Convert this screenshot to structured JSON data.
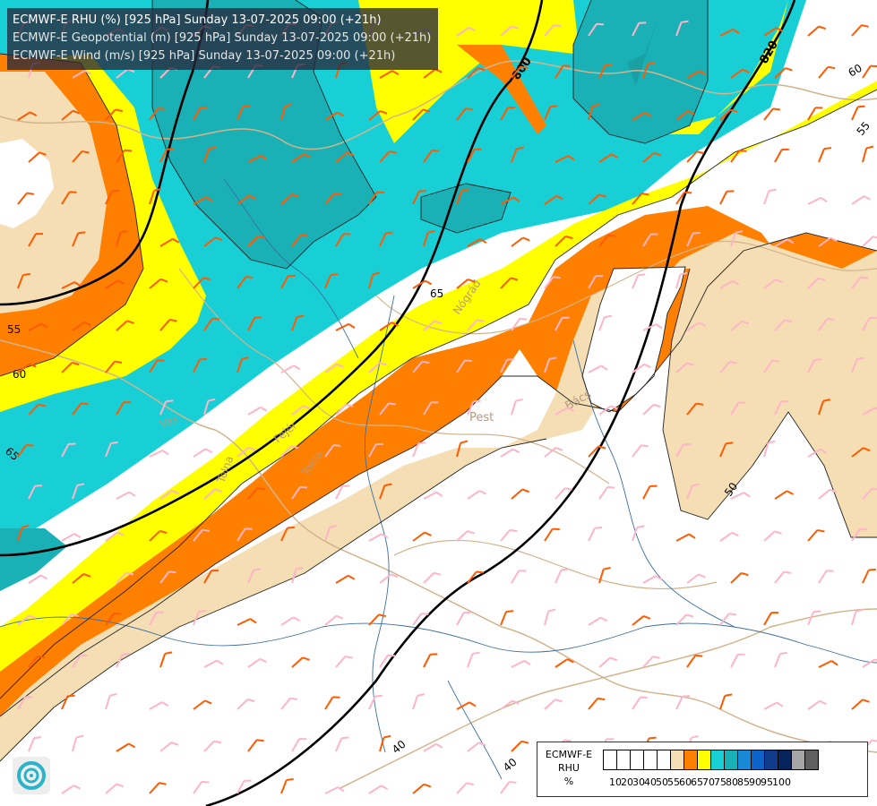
{
  "header": {
    "rhu_line": "ECMWF-E RHU (%) [925 hPa] Sunday 13-07-2025 09:00 (+21h)",
    "geopotential_line": "ECMWF-E Geopotential (m) [925 hPa] Sunday 13-07-2025 09:00 (+21h)",
    "wind_line": "ECMWF-E Wind (m/s) [925 hPa] Sunday 13-07-2025 09:00 (+21h)"
  },
  "contour_labels": {
    "geopotential": [
      "800",
      "820"
    ],
    "rhu": [
      "55",
      "60",
      "65",
      "65",
      "60",
      "55",
      "50",
      "40",
      "40"
    ]
  },
  "place_labels": [
    "Pest",
    "Bács",
    "Tolna",
    "Tolna",
    "Fejér",
    "Nógrád",
    "Vas"
  ],
  "legend": {
    "title_line1": "ECMWF-E",
    "title_line2": "RHU",
    "title_line3": "%",
    "ticks": [
      "10",
      "20",
      "30",
      "40",
      "50",
      "55",
      "60",
      "65",
      "70",
      "75",
      "80",
      "85",
      "90",
      "95",
      "100"
    ],
    "colors": [
      "#ffffff",
      "#ffffff",
      "#ffffff",
      "#ffffff",
      "#ffffff",
      "#f5deb3",
      "#ff8000",
      "#ffff00",
      "#19cfd6",
      "#19b1b5",
      "#1988d6",
      "#0b64c8",
      "#113c8c",
      "#06245c",
      "#a6a6a6",
      "#606060"
    ]
  },
  "colors": {
    "band_50_55": "#f5deb3",
    "band_55_60": "#ff8000",
    "band_60_65": "#ffff00",
    "band_65_70": "#19cfd6",
    "band_70_75": "#19b1b5",
    "geopotential_line": "#000000",
    "wind_barb_strong": "#ff5a00",
    "wind_barb_weak": "#ffb4c8",
    "borders": "#d2b48c",
    "rivers": "#3c6ea0"
  },
  "icons": [
    "ecmwf-logo-icon",
    "wind-barb-icon"
  ]
}
